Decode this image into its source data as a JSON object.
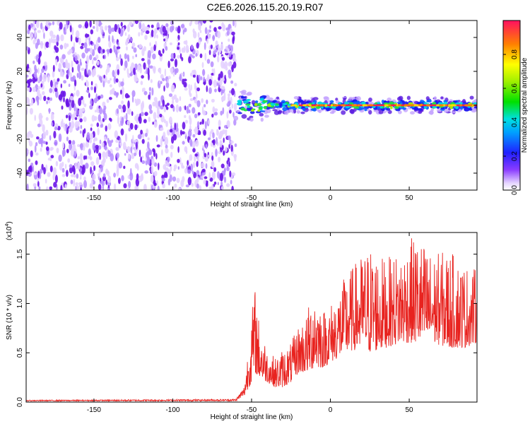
{
  "title": "C2E6.2026.115.20.19.R07",
  "chart_data": [
    {
      "type": "heatmap",
      "name": "spectrogram",
      "xlabel": "Height of straight line (km)",
      "ylabel": "Frequency (Hz)",
      "xlim": [
        -193,
        93
      ],
      "ylim": [
        -50,
        50
      ],
      "x_ticks": [
        -150,
        -100,
        -50,
        0,
        50
      ],
      "x_tick_labels": [
        "-150",
        "-100",
        "-50",
        "0",
        "50"
      ],
      "y_ticks": [
        -40,
        -20,
        0,
        20,
        40
      ],
      "y_tick_labels": [
        "-40",
        "-20",
        "0",
        "20",
        "40"
      ],
      "grid": false,
      "description_regions": [
        {
          "x_range": [
            -193,
            -60
          ],
          "freq_range": [
            -50,
            50
          ],
          "level": 0.15
        },
        {
          "x_range": [
            -60,
            93
          ],
          "freq_range": [
            -5,
            5
          ],
          "level": 0.3
        },
        {
          "x_range": [
            -60,
            93
          ],
          "freq_range": [
            -1,
            1
          ],
          "level": 0.9
        }
      ],
      "colorbar": {
        "label": "Normalized spectral amplitude",
        "range": [
          0.0,
          1.0
        ],
        "ticks": [
          0.0,
          0.2,
          0.4,
          0.6,
          0.8
        ],
        "tick_labels": [
          "0.0",
          "0.2",
          "0.4",
          "0.6",
          "0.8"
        ]
      }
    },
    {
      "type": "line",
      "name": "snr",
      "xlabel": "Height of straight line (km)",
      "ylabel": "SNR (10 * v/v)",
      "multiplier_label": "(x10",
      "multiplier_exp": "4",
      "multiplier_close": ")",
      "xlim": [
        -193,
        93
      ],
      "ylim": [
        0,
        1.72
      ],
      "x_ticks": [
        -150,
        -100,
        -50,
        0,
        50
      ],
      "x_tick_labels": [
        "-150",
        "-100",
        "-50",
        "0",
        "50"
      ],
      "y_ticks": [
        0.0,
        0.5,
        1.0,
        1.5
      ],
      "y_tick_labels": [
        "0.0",
        "0.5",
        "1.0",
        "1.5"
      ],
      "color": "#e8231f",
      "envelope": [
        {
          "x": -193,
          "baseline": 0.01,
          "peak": 0.02
        },
        {
          "x": -60,
          "baseline": 0.01,
          "peak": 0.03
        },
        {
          "x": -55,
          "baseline": 0.05,
          "peak": 0.15
        },
        {
          "x": -50,
          "baseline": 0.2,
          "peak": 0.9
        },
        {
          "x": -48,
          "baseline": 0.3,
          "peak": 1.2
        },
        {
          "x": -45,
          "baseline": 0.25,
          "peak": 0.8
        },
        {
          "x": -40,
          "baseline": 0.2,
          "peak": 0.55
        },
        {
          "x": -35,
          "baseline": 0.15,
          "peak": 0.45
        },
        {
          "x": -30,
          "baseline": 0.15,
          "peak": 0.55
        },
        {
          "x": -25,
          "baseline": 0.2,
          "peak": 0.6
        },
        {
          "x": -20,
          "baseline": 0.3,
          "peak": 0.8
        },
        {
          "x": -15,
          "baseline": 0.3,
          "peak": 0.9
        },
        {
          "x": -10,
          "baseline": 0.35,
          "peak": 1.25
        },
        {
          "x": -5,
          "baseline": 0.35,
          "peak": 0.95
        },
        {
          "x": 0,
          "baseline": 0.4,
          "peak": 1.0
        },
        {
          "x": 10,
          "baseline": 0.5,
          "peak": 1.3
        },
        {
          "x": 20,
          "baseline": 0.55,
          "peak": 1.5
        },
        {
          "x": 25,
          "baseline": 0.5,
          "peak": 1.6
        },
        {
          "x": 35,
          "baseline": 0.55,
          "peak": 1.45
        },
        {
          "x": 45,
          "baseline": 0.6,
          "peak": 1.55
        },
        {
          "x": 50,
          "baseline": 0.6,
          "peak": 1.65
        },
        {
          "x": 55,
          "baseline": 0.6,
          "peak": 1.7
        },
        {
          "x": 65,
          "baseline": 0.6,
          "peak": 1.5
        },
        {
          "x": 75,
          "baseline": 0.55,
          "peak": 1.55
        },
        {
          "x": 85,
          "baseline": 0.55,
          "peak": 1.4
        },
        {
          "x": 93,
          "baseline": 0.6,
          "peak": 1.35
        }
      ]
    }
  ]
}
